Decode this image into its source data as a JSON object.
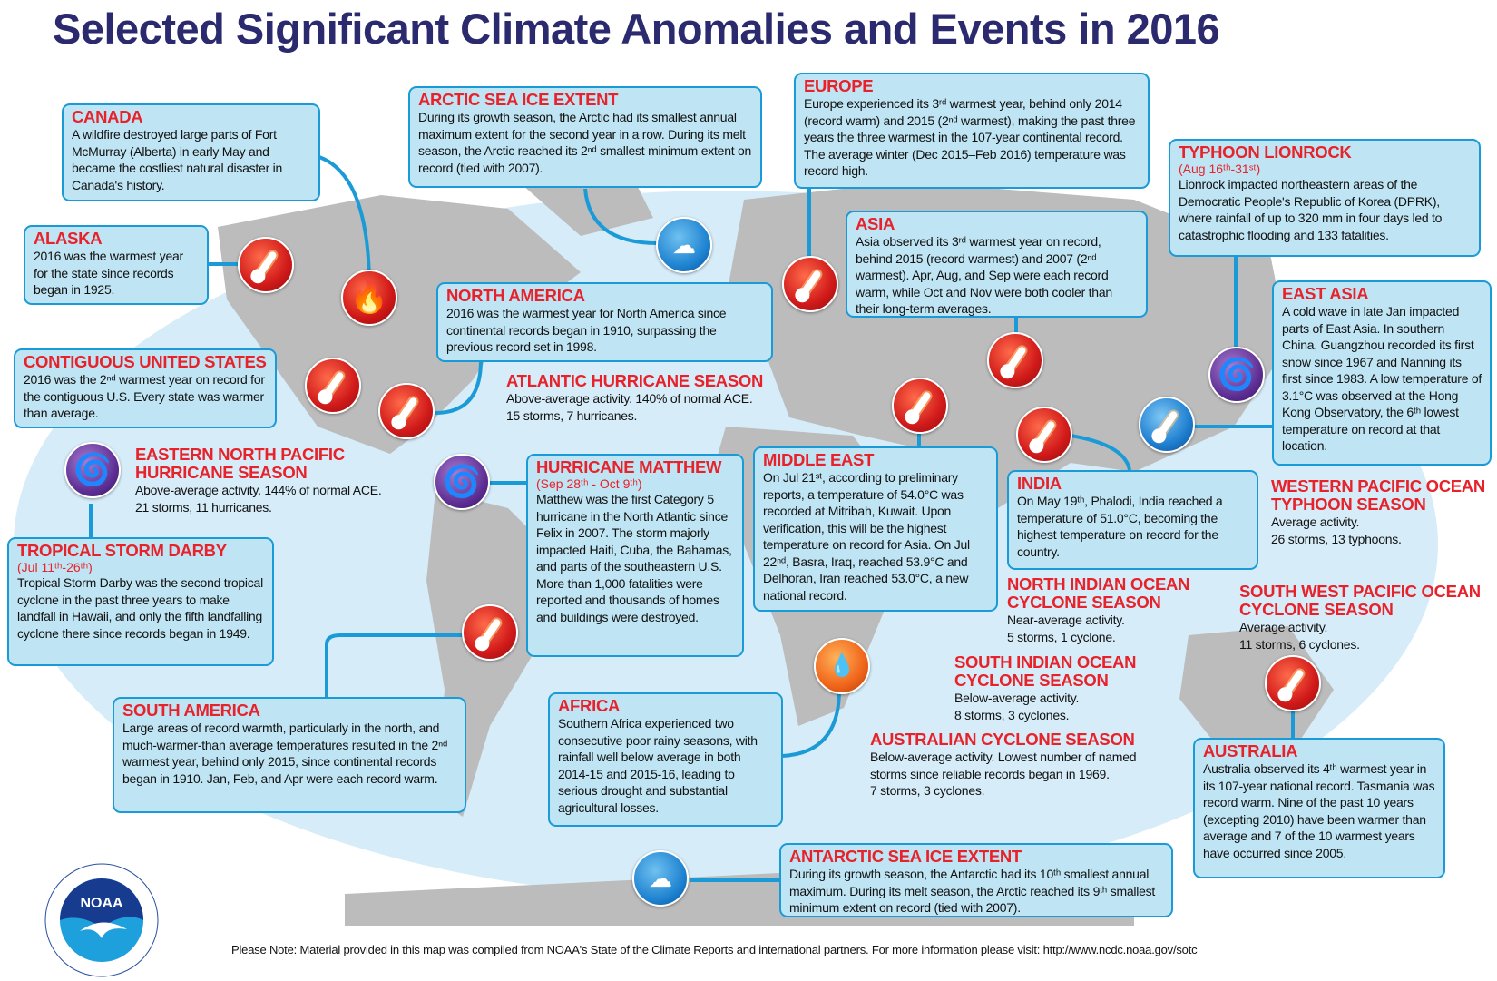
{
  "title": "Selected Significant Climate Anomalies and Events in 2016",
  "colors": {
    "heading": "#e8222a",
    "box_fill": "#bfe4f3",
    "box_border": "#1a9bd7",
    "title": "#2b2a6e",
    "ocean": "#d6ecf8",
    "land": "#bfbfbf"
  },
  "boxes": {
    "canada": {
      "title": "CANADA",
      "text": "A wildfire destroyed large parts of Fort McMurray (Alberta) in early May and became the costliest natural disaster in Canada's history."
    },
    "alaska": {
      "title": "ALASKA",
      "text": "2016 was the warmest year for the state since records began in 1925."
    },
    "contiguous_us": {
      "title": "CONTIGUOUS UNITED STATES",
      "text": "2016 was the 2ⁿᵈ warmest year on record for the contiguous U.S. Every state was warmer than average."
    },
    "arctic": {
      "title": "ARCTIC SEA ICE EXTENT",
      "text": "During its growth season, the Arctic had its smallest annual maximum extent for the second year in a row. During its melt season, the Arctic reached its 2ⁿᵈ smallest minimum extent on record (tied with 2007)."
    },
    "europe": {
      "title": "EUROPE",
      "text": "Europe experienced its 3ʳᵈ warmest year, behind only 2014 (record warm) and 2015 (2ⁿᵈ warmest), making the past three years the three warmest in the 107-year continental record. The average winter (Dec 2015–Feb 2016) temperature was record high."
    },
    "lionrock": {
      "title": "TYPHOON LIONROCK",
      "dates": "(Aug 16ᵗʰ-31ˢᵗ)",
      "text": "Lionrock impacted northeastern areas of the Democratic People's Republic of Korea (DPRK), where rainfall of up to 320 mm in four days led to catastrophic flooding and 133 fatalities."
    },
    "asia": {
      "title": "ASIA",
      "text": "Asia observed its 3ʳᵈ warmest year on record, behind 2015 (record warmest) and 2007 (2ⁿᵈ warmest). Apr, Aug, and Sep were each record warm, while Oct and Nov were both cooler than their long-term averages."
    },
    "north_america": {
      "title": "NORTH AMERICA",
      "text": "2016 was the warmest year for North America since continental records began in 1910, surpassing the previous record set in 1998."
    },
    "east_asia": {
      "title": "EAST ASIA",
      "text": "A cold wave in late Jan impacted parts of East Asia. In southern China, Guangzhou recorded its first snow since 1967 and Nanning its first since 1983. A low temperature of 3.1°C was observed at the Hong Kong Observatory, the 6ᵗʰ lowest temperature on record at that location."
    },
    "matthew": {
      "title": "HURRICANE MATTHEW",
      "dates": "(Sep 28ᵗʰ - Oct 9ᵗʰ)",
      "text": "Matthew was the first Category 5 hurricane in the North Atlantic since Felix in 2007. The storm majorly impacted Haiti, Cuba, the Bahamas, and parts of the southeastern U.S. More than 1,000 fatalities were reported and thousands of homes and buildings were destroyed."
    },
    "middle_east": {
      "title": "MIDDLE EAST",
      "text": "On Jul 21ˢᵗ, according to preliminary reports, a temperature of 54.0°C was recorded at Mitribah, Kuwait. Upon verification, this will be the highest temperature on record for Asia. On Jul 22ⁿᵈ, Basra, Iraq, reached 53.9°C and Delhoran, Iran reached 53.0°C, a new national record."
    },
    "india": {
      "title": "INDIA",
      "text": "On May 19ᵗʰ, Phalodi, India reached a temperature of 51.0°C, becoming the highest temperature on record for the country."
    },
    "darby": {
      "title": "TROPICAL STORM DARBY",
      "dates": "(Jul 11ᵗʰ-26ᵗʰ)",
      "text": "Tropical Storm Darby was the second tropical cyclone in the past  three years to make landfall in Hawaii, and only the fifth landfalling cyclone there since records began in 1949."
    },
    "south_america": {
      "title": "SOUTH AMERICA",
      "text": "Large areas of record warmth, particularly in the north, and much-warmer-than average temperatures resulted in the 2ⁿᵈ warmest year, behind only 2015, since continental records began in 1910. Jan, Feb, and Apr were each record warm."
    },
    "africa": {
      "title": "AFRICA",
      "text": "Southern Africa experienced two consecutive poor rainy seasons, with rainfall well below average in both 2014-15 and 2015-16, leading to serious drought and substantial agricultural losses."
    },
    "australia": {
      "title": "AUSTRALIA",
      "text": "Australia observed its 4ᵗʰ warmest year in its 107-year national record. Tasmania was record warm. Nine of the past 10 years (excepting 2010) have been warmer than average and 7 of the 10 warmest years have occurred since 2005."
    },
    "antarctic": {
      "title": "ANTARCTIC SEA ICE EXTENT",
      "text": "During its growth season, the Antarctic had its 10ᵗʰ smallest annual maximum. During its melt season, the Arctic reached its 9ᵗʰ smallest minimum extent on record (tied with 2007)."
    }
  },
  "seasons": {
    "atlantic": {
      "title": "ATLANTIC HURRICANE SEASON",
      "line1": "Above-average activity. 140% of normal ACE.",
      "line2": "15 storms, 7 hurricanes."
    },
    "enp": {
      "title": "EASTERN NORTH PACIFIC HURRICANE SEASON",
      "line1": "Above-average activity. 144% of normal ACE.",
      "line2": "21 storms, 11 hurricanes."
    },
    "wpac": {
      "title": "WESTERN PACIFIC OCEAN TYPHOON SEASON",
      "line1": "Average activity.",
      "line2": "26 storms, 13 typhoons."
    },
    "nio": {
      "title": "NORTH INDIAN OCEAN CYCLONE SEASON",
      "line1": "Near-average activity.",
      "line2": "5 storms, 1 cyclone."
    },
    "swp": {
      "title": "SOUTH WEST PACIFIC OCEAN CYCLONE SEASON",
      "line1": "Average activity.",
      "line2": "11 storms, 6 cyclones."
    },
    "sio": {
      "title": "SOUTH INDIAN OCEAN CYCLONE SEASON",
      "line1": "Below-average activity.",
      "line2": "8 storms, 3 cyclones."
    },
    "aus": {
      "title": "AUSTRALIAN CYCLONE SEASON",
      "line1": "Below-average activity. Lowest number of named storms since reliable records began in 1969.",
      "line2": "7 storms, 3 cyclones."
    }
  },
  "footer": "Please Note: Material provided in this map was compiled from NOAA's State of the Climate Reports and international partners. For more information please visit: http://www.ncdc.noaa.gov/sotc",
  "logo": {
    "text": "NOAA",
    "ring": "NATIONAL OCEANIC AND ATMOSPHERIC ADMINISTRATION · U.S. DEPARTMENT OF COMMERCE"
  }
}
